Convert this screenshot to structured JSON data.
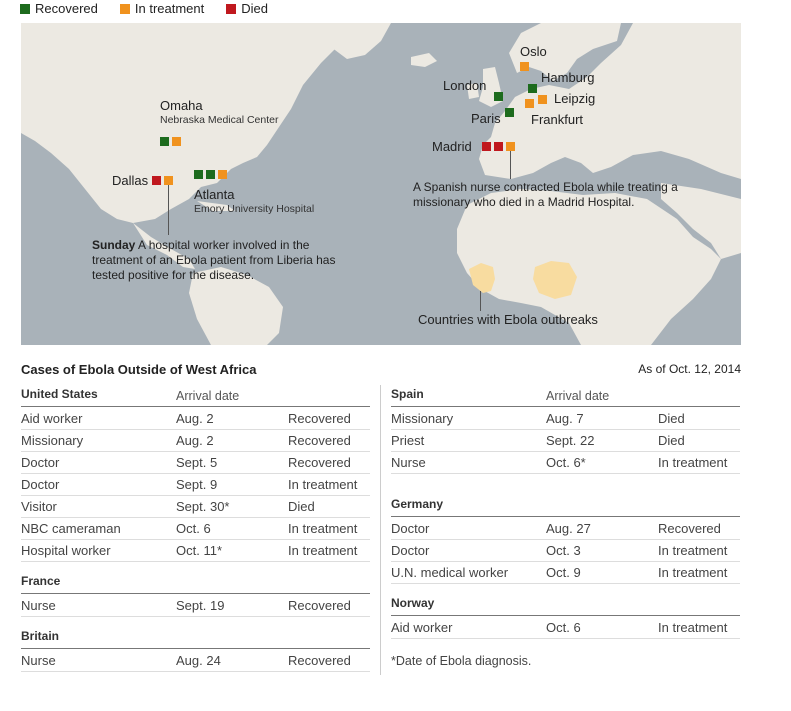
{
  "legend": {
    "recovered": "Recovered",
    "in_treatment": "In treatment",
    "died": "Died"
  },
  "colors": {
    "recovered": "#1d6b1d",
    "in_treatment": "#f0921e",
    "died": "#c0181e",
    "ocean": "#a9b2b9",
    "land": "#ece9e2",
    "outbreak": "#f8dca0"
  },
  "map": {
    "cities": {
      "omaha": "Omaha",
      "omaha_sub": "Nebraska Medical Center",
      "dallas": "Dallas",
      "atlanta": "Atlanta",
      "atlanta_sub": "Emory University Hospital",
      "oslo": "Oslo",
      "hamburg": "Hamburg",
      "london": "London",
      "leipzig": "Leipzig",
      "paris": "Paris",
      "frankfurt": "Frankfurt",
      "madrid": "Madrid"
    },
    "note_us_bold": "Sunday",
    "note_us": " A hospital worker involved in the treatment of an Ebola patient from Liberia has tested positive for the disease.",
    "note_spain": "A Spanish nurse contracted Ebola while treating a missionary who died in a Madrid Hospital.",
    "outbreak_label": "Countries with Ebola outbreaks"
  },
  "table": {
    "title": "Cases of Ebola Outside of West Africa",
    "as_of": "As of Oct. 12, 2014",
    "arrival_header": "Arrival date",
    "footnote": "*Date of Ebola diagnosis.",
    "us": {
      "name": "United States",
      "rows": [
        [
          "Aid worker",
          "Aug. 2",
          "Recovered"
        ],
        [
          "Missionary",
          "Aug. 2",
          "Recovered"
        ],
        [
          "Doctor",
          "Sept. 5",
          "Recovered"
        ],
        [
          "Doctor",
          "Sept. 9",
          "In treatment"
        ],
        [
          "Visitor",
          "Sept. 30*",
          "Died"
        ],
        [
          "NBC cameraman",
          "Oct. 6",
          "In treatment"
        ],
        [
          "Hospital worker",
          "Oct. 11*",
          "In treatment"
        ]
      ]
    },
    "france": {
      "name": "France",
      "rows": [
        [
          "Nurse",
          "Sept. 19",
          "Recovered"
        ]
      ]
    },
    "britain": {
      "name": "Britain",
      "rows": [
        [
          "Nurse",
          "Aug. 24",
          "Recovered"
        ]
      ]
    },
    "spain": {
      "name": "Spain",
      "rows": [
        [
          "Missionary",
          "Aug. 7",
          "Died"
        ],
        [
          "Priest",
          "Sept. 22",
          "Died"
        ],
        [
          "Nurse",
          "Oct. 6*",
          "In treatment"
        ]
      ]
    },
    "germany": {
      "name": "Germany",
      "rows": [
        [
          "Doctor",
          "Aug. 27",
          "Recovered"
        ],
        [
          "Doctor",
          "Oct. 3",
          "In treatment"
        ],
        [
          "U.N. medical worker",
          "Oct. 9",
          "In treatment"
        ]
      ]
    },
    "norway": {
      "name": "Norway",
      "rows": [
        [
          "Aid worker",
          "Oct. 6",
          "In treatment"
        ]
      ]
    }
  }
}
